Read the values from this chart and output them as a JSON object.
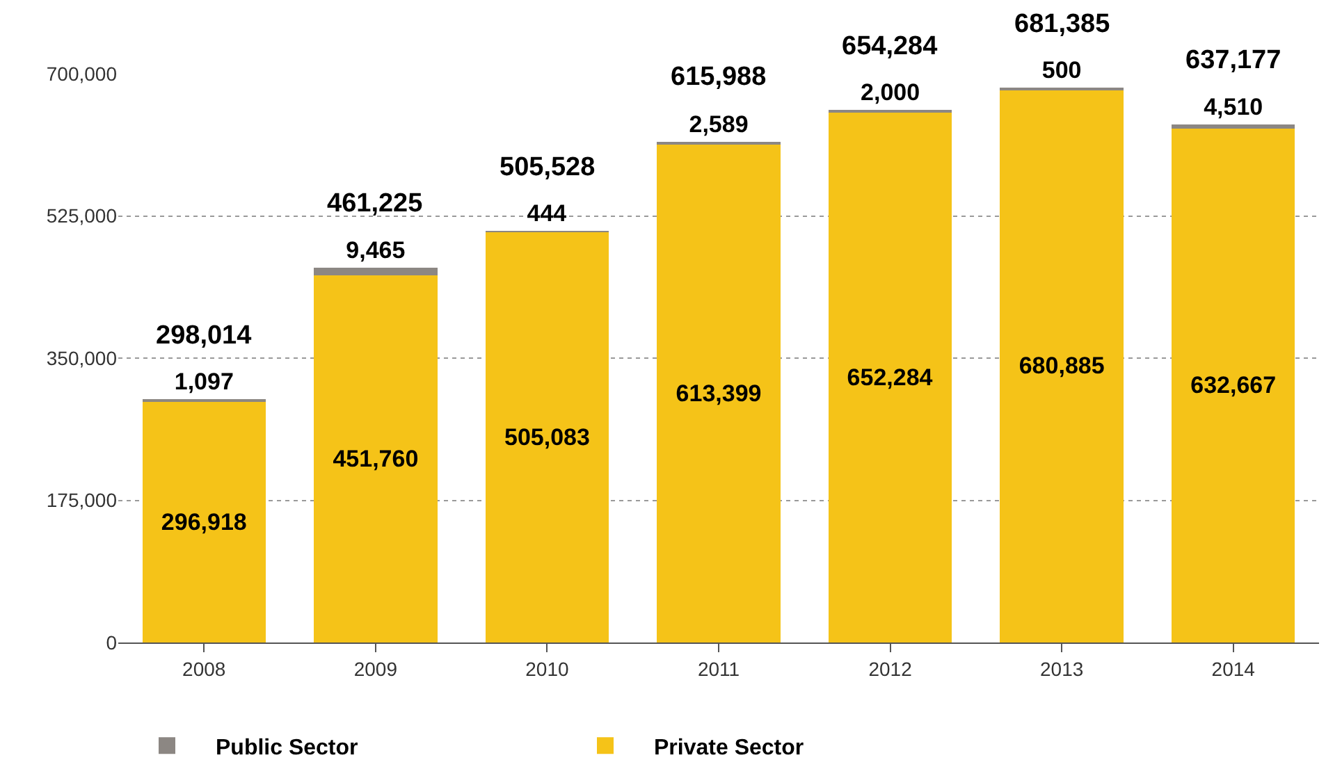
{
  "chart_data": {
    "type": "bar",
    "stacked": true,
    "categories": [
      "2008",
      "2009",
      "2010",
      "2011",
      "2012",
      "2013",
      "2014"
    ],
    "series": [
      {
        "name": "Private Sector",
        "color": "#f5c318",
        "values": [
          296918,
          451760,
          505083,
          613399,
          652284,
          680885,
          632667
        ],
        "value_labels": [
          "296,918",
          "451,760",
          "505,083",
          "613,399",
          "652,284",
          "680,885",
          "632,667"
        ]
      },
      {
        "name": "Public Sector",
        "color": "#8c8783",
        "values": [
          1097,
          9465,
          444,
          2589,
          2000,
          500,
          4510
        ],
        "value_labels": [
          "1,097",
          "9,465",
          "444",
          "2,589",
          "2,000",
          "500",
          "4,510"
        ]
      }
    ],
    "totals": [
      "298,014",
      "461,225",
      "505,528",
      "615,988",
      "654,284",
      "681,385",
      "637,177"
    ],
    "ylim": [
      0,
      700000
    ],
    "yticks": [
      {
        "value": 0,
        "label": "0"
      },
      {
        "value": 175000,
        "label": "175,000"
      },
      {
        "value": 350000,
        "label": "350,000"
      },
      {
        "value": 525000,
        "label": "525,000"
      },
      {
        "value": 700000,
        "label": "700,000"
      }
    ],
    "grid": "y",
    "legend": "bottom left"
  }
}
